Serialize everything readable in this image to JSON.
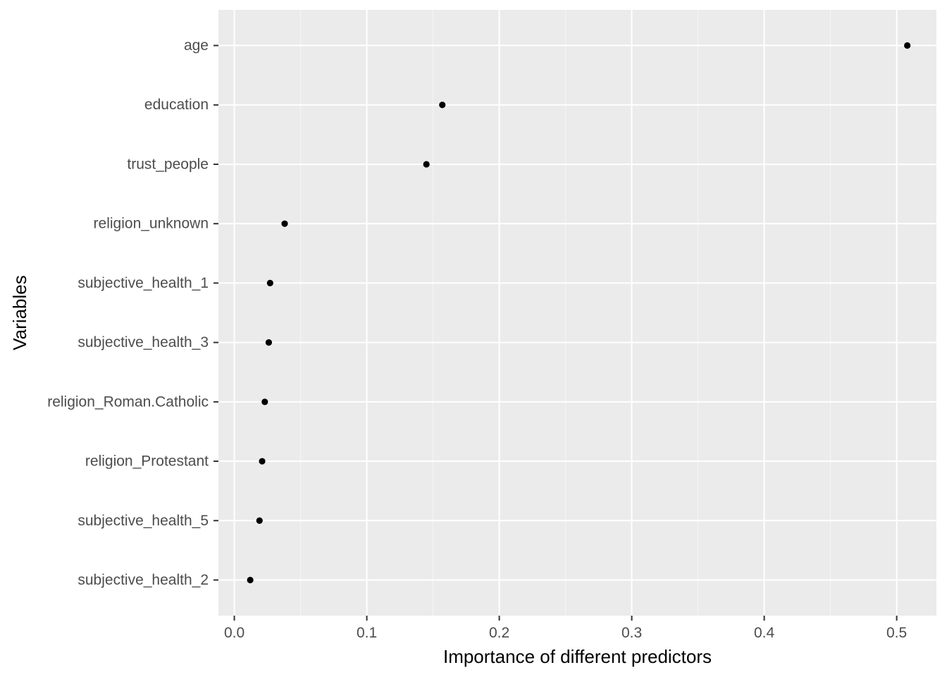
{
  "chart_data": {
    "type": "scatter",
    "title": "",
    "xlabel": "Importance of different predictors",
    "ylabel": "Variables",
    "xlim": [
      -0.012,
      0.53
    ],
    "x_ticks": [
      0.0,
      0.1,
      0.2,
      0.3,
      0.4,
      0.5
    ],
    "x_tick_labels": [
      "0.0",
      "0.1",
      "0.2",
      "0.3",
      "0.4",
      "0.5"
    ],
    "grid": true,
    "legend": "none",
    "categories": [
      "age",
      "education",
      "trust_people",
      "religion_unknown",
      "subjective_health_1",
      "subjective_health_3",
      "religion_Roman.Catholic",
      "religion_Protestant",
      "subjective_health_5",
      "subjective_health_2"
    ],
    "values": [
      0.508,
      0.157,
      0.145,
      0.038,
      0.027,
      0.026,
      0.023,
      0.021,
      0.019,
      0.012
    ],
    "colors": {
      "panel_background": "#EBEBEB",
      "grid_major": "#FFFFFF",
      "point": "#000000",
      "tick_text": "#4D4D4D",
      "title_text": "#000000"
    }
  }
}
